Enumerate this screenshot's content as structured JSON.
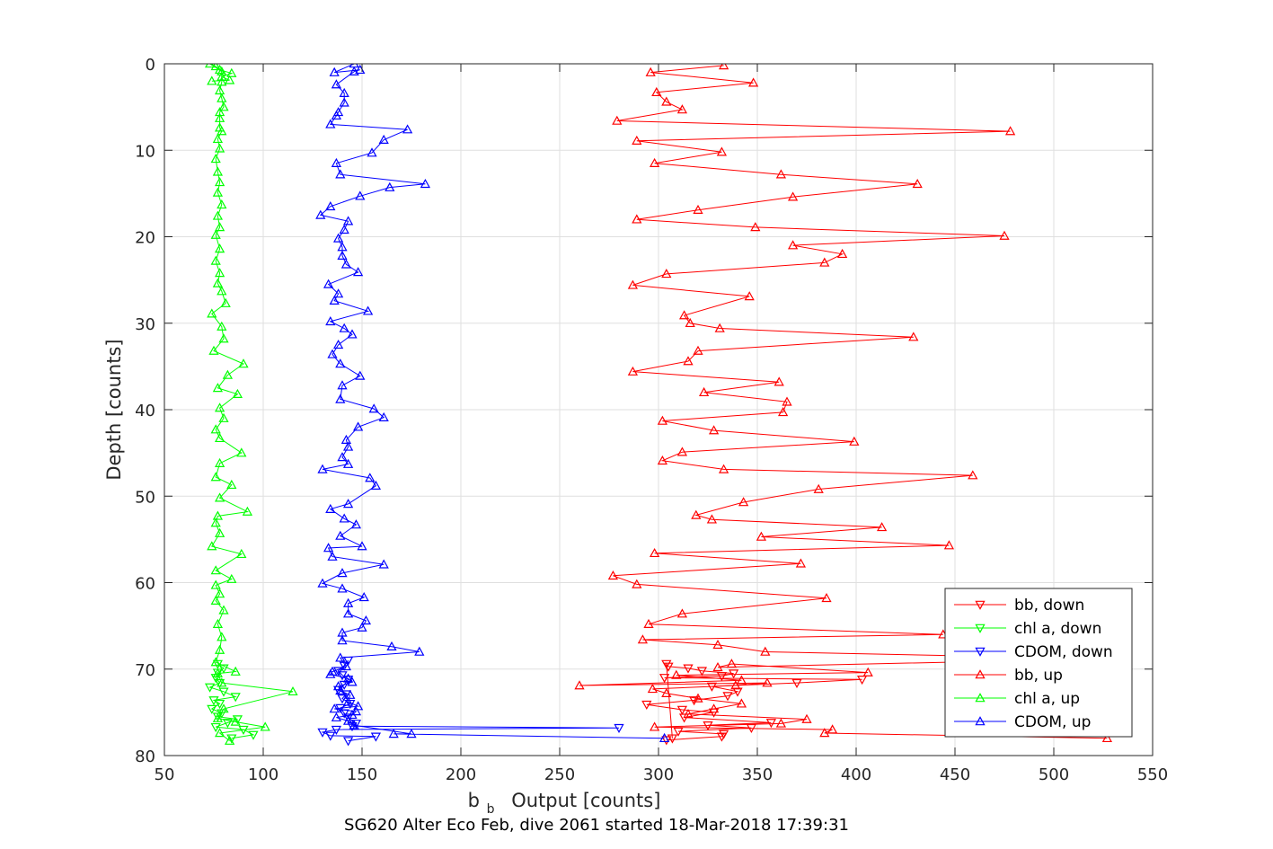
{
  "chart_data": {
    "type": "line",
    "xlabel": "Output [counts]",
    "xlabel_sub": "b",
    "ylabel": "Depth [counts]",
    "footer": "SG620 Alter Eco Feb, dive 2061 started 18-Mar-2018 17:39:31",
    "xlim": [
      50,
      550
    ],
    "ylim": [
      0,
      80
    ],
    "y_reversed": true,
    "grid": true,
    "legend_position": "lower-right",
    "xticks": [
      "50",
      "100",
      "150",
      "200",
      "250",
      "300",
      "350",
      "400",
      "450",
      "500",
      "550"
    ],
    "yticks": [
      "0",
      "10",
      "20",
      "30",
      "40",
      "50",
      "60",
      "70",
      "80"
    ],
    "colors": {
      "bb": "#ff0000",
      "chl": "#00ff00",
      "cdom": "#0000ff",
      "axis": "#262626",
      "grid": "#dfdfdf"
    },
    "legend": [
      {
        "label": "bb, down",
        "color": "#ff0000",
        "marker": "down"
      },
      {
        "label": "chl a, down",
        "color": "#00ff00",
        "marker": "down"
      },
      {
        "label": "CDOM, down",
        "color": "#0000ff",
        "marker": "down"
      },
      {
        "label": "bb, up",
        "color": "#ff0000",
        "marker": "up"
      },
      {
        "label": "chl a, up",
        "color": "#00ff00",
        "marker": "up"
      },
      {
        "label": "CDOM, up",
        "color": "#0000ff",
        "marker": "up"
      }
    ],
    "series": [
      {
        "name": "bb, down",
        "color": "#ff0000",
        "marker": "down",
        "x": [
          304,
          332,
          333,
          310,
          347,
          325,
          357,
          313,
          328,
          312,
          294,
          318,
          335,
          340,
          327,
          370,
          403,
          303,
          332,
          338,
          322,
          315,
          305,
          304,
          307
        ],
        "y": [
          78.2,
          77.8,
          77.5,
          77.2,
          76.8,
          76.5,
          76.2,
          75.6,
          75.0,
          74.7,
          74.1,
          73.6,
          73.1,
          72.6,
          72.0,
          71.6,
          71.2,
          71.0,
          70.8,
          70.5,
          70.2,
          69.9,
          69.7,
          69.4,
          78.0
        ]
      },
      {
        "name": "chl a, down",
        "color": "#00ff00",
        "marker": "down",
        "x": [
          84,
          95,
          90,
          76,
          82,
          87,
          77,
          79,
          74,
          78,
          75,
          86,
          80,
          73,
          78,
          76,
          77,
          80,
          77
        ],
        "y": [
          78.0,
          77.6,
          77.0,
          76.7,
          76.2,
          75.8,
          75.5,
          75.1,
          74.6,
          74.0,
          73.6,
          73.2,
          72.6,
          72.1,
          71.6,
          71.0,
          70.4,
          69.9,
          69.4
        ]
      },
      {
        "name": "CDOM, down",
        "color": "#0000ff",
        "marker": "down",
        "x": [
          143,
          157,
          134,
          130,
          137,
          280,
          145,
          147,
          143,
          141,
          139,
          144,
          140,
          142,
          138,
          141,
          143,
          140,
          138,
          141,
          143
        ],
        "y": [
          78.3,
          77.8,
          77.7,
          77.3,
          77.0,
          76.8,
          76.6,
          76.3,
          75.6,
          75.1,
          74.5,
          74.0,
          73.4,
          72.9,
          72.4,
          71.8,
          71.2,
          70.7,
          70.2,
          69.6,
          69.0
        ]
      },
      {
        "name": "bb, up",
        "color": "#ff0000",
        "marker": "up",
        "x": [
          527,
          384,
          388,
          298,
          362,
          375,
          315,
          328,
          342,
          320,
          304,
          297,
          339,
          355,
          260,
          342,
          309,
          406,
          337,
          330,
          525,
          354,
          330,
          292,
          444,
          295,
          312,
          385,
          289,
          277,
          372,
          298,
          447,
          352,
          413,
          327,
          319,
          343,
          381,
          459,
          333,
          302,
          312,
          399,
          328,
          302,
          363,
          365,
          323,
          361,
          287,
          315,
          320,
          429,
          331,
          316,
          313,
          346,
          287,
          304,
          384,
          393,
          368,
          475,
          349,
          289,
          320,
          368,
          431,
          362,
          298,
          332,
          289,
          478,
          279,
          312,
          304,
          299,
          348,
          296,
          333
        ],
        "y": [
          78.0,
          77.4,
          77.0,
          76.7,
          76.3,
          75.8,
          75.2,
          74.6,
          74.0,
          73.4,
          72.8,
          72.3,
          71.9,
          71.6,
          71.9,
          71.3,
          70.7,
          70.4,
          69.4,
          69.8,
          68.8,
          68.0,
          67.2,
          66.6,
          66.0,
          64.8,
          63.6,
          61.8,
          60.2,
          59.2,
          57.8,
          56.6,
          55.7,
          54.7,
          53.6,
          52.7,
          52.2,
          50.7,
          49.2,
          47.6,
          46.9,
          45.9,
          44.9,
          43.7,
          42.4,
          41.3,
          40.3,
          39.1,
          38.0,
          36.8,
          35.6,
          34.4,
          33.2,
          31.6,
          30.6,
          30.0,
          29.1,
          26.9,
          25.6,
          24.3,
          23.0,
          22.0,
          21.0,
          19.9,
          18.9,
          18.0,
          16.9,
          15.4,
          13.9,
          12.8,
          11.5,
          10.2,
          8.9,
          7.8,
          6.6,
          5.3,
          4.4,
          3.3,
          2.2,
          1.0,
          0.2
        ]
      },
      {
        "name": "chl a, up",
        "color": "#00ff00",
        "marker": "up",
        "x": [
          83,
          78,
          101,
          86,
          77,
          80,
          115,
          79,
          77,
          86,
          76,
          78,
          79,
          77,
          80,
          76,
          78,
          76,
          84,
          76,
          89,
          74,
          78,
          76,
          77,
          92,
          78,
          84,
          76,
          78,
          89,
          78,
          76,
          80,
          78,
          87,
          77,
          82,
          90,
          75,
          80,
          79,
          74,
          81,
          79,
          77,
          78,
          76,
          78,
          76,
          78,
          77,
          79,
          77,
          78,
          77,
          76,
          78,
          77,
          79,
          78,
          78,
          78,
          80,
          79,
          78,
          79,
          79,
          73,
          76,
          78,
          84,
          79,
          83,
          74
        ],
        "y": [
          78.3,
          77.4,
          76.7,
          76.1,
          75.7,
          74.6,
          72.6,
          71.6,
          70.5,
          70.3,
          69.2,
          67.8,
          66.3,
          64.8,
          63.2,
          62.1,
          61.3,
          60.3,
          59.6,
          58.6,
          56.7,
          55.8,
          54.3,
          53.1,
          52.3,
          51.8,
          50.2,
          48.7,
          47.8,
          46.2,
          45.0,
          43.3,
          42.3,
          41.0,
          39.8,
          38.2,
          37.5,
          36.0,
          34.7,
          33.2,
          31.8,
          30.4,
          28.9,
          27.7,
          26.3,
          25.4,
          24.2,
          22.8,
          21.4,
          19.8,
          18.9,
          17.6,
          16.3,
          14.9,
          13.7,
          12.5,
          11.0,
          9.8,
          8.7,
          7.8,
          7.4,
          6.3,
          5.6,
          5.0,
          4.0,
          3.1,
          2.1,
          0.9,
          0.0,
          0.3,
          0.7,
          1.1,
          1.5,
          1.9,
          2.0
        ]
      },
      {
        "name": "CDOM, up",
        "color": "#0000ff",
        "marker": "up",
        "x": [
          303,
          166,
          175,
          146,
          143,
          137,
          145,
          147,
          136,
          148,
          143,
          144,
          139,
          138,
          145,
          143,
          134,
          135,
          142,
          139,
          179,
          165,
          140,
          140,
          150,
          152,
          143,
          143,
          151,
          140,
          130,
          140,
          161,
          135,
          133,
          150,
          139,
          147,
          141,
          134,
          143,
          157,
          154,
          130,
          143,
          140,
          143,
          142,
          148,
          161,
          156,
          139,
          140,
          149,
          139,
          135,
          138,
          145,
          141,
          134,
          153,
          136,
          138,
          133,
          148,
          142,
          140,
          140,
          138,
          141,
          143,
          129,
          134,
          149,
          164,
          182,
          139,
          137,
          155,
          161,
          173,
          134,
          137,
          138,
          141,
          141,
          137,
          146,
          149,
          136,
          146
        ],
        "y": [
          78.0,
          77.5,
          77.5,
          76.5,
          76.0,
          75.6,
          75.3,
          74.9,
          74.6,
          74.3,
          73.8,
          73.0,
          72.5,
          72.0,
          71.5,
          71.1,
          70.6,
          70.3,
          69.7,
          68.7,
          68.0,
          67.4,
          66.7,
          65.8,
          65.2,
          64.4,
          63.6,
          62.4,
          61.7,
          60.7,
          60.1,
          58.9,
          57.9,
          57.0,
          56.0,
          55.8,
          54.6,
          53.3,
          52.6,
          51.5,
          50.9,
          48.8,
          47.9,
          46.9,
          46.3,
          45.5,
          44.3,
          43.5,
          42.0,
          40.9,
          39.9,
          38.8,
          37.2,
          36.1,
          34.7,
          33.6,
          32.5,
          31.3,
          30.6,
          29.8,
          28.6,
          27.4,
          26.6,
          25.5,
          24.1,
          23.2,
          22.2,
          21.2,
          20.2,
          19.2,
          18.2,
          17.5,
          16.5,
          15.3,
          14.3,
          13.9,
          12.8,
          11.5,
          10.3,
          8.8,
          7.6,
          7.0,
          6.0,
          5.6,
          4.5,
          3.4,
          2.4,
          0.9,
          0.7,
          1.0,
          0.0
        ]
      }
    ]
  }
}
